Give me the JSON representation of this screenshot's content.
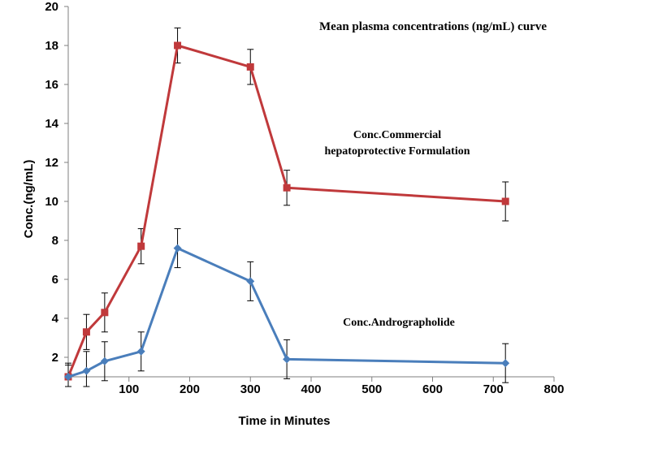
{
  "chart_data": {
    "type": "line",
    "title": "Mean plasma concentrations (ng/mL) curve",
    "xlabel": "Time in Minutes",
    "ylabel": "Conc.(ng/mL)",
    "xlim": [
      0,
      800
    ],
    "ylim": [
      1,
      20
    ],
    "x_ticks": [
      100,
      200,
      300,
      400,
      500,
      600,
      700,
      800
    ],
    "y_ticks": [
      2,
      4,
      6,
      8,
      10,
      12,
      14,
      16,
      18,
      20
    ],
    "grid": false,
    "annotations": [
      "Conc.Commercial",
      "hepatoprotective  Formulation",
      "Conc.Andrographolide"
    ],
    "series": [
      {
        "color": "#c0393b",
        "marker": "square",
        "x": [
          0,
          30,
          60,
          120,
          180,
          300,
          360,
          720
        ],
        "y": [
          1.0,
          3.3,
          4.3,
          7.7,
          18.0,
          16.9,
          10.7,
          10.0
        ],
        "error": [
          0.7,
          0.9,
          1.0,
          0.9,
          0.9,
          0.9,
          0.9,
          1.0
        ]
      },
      {
        "color": "#4a7ebb",
        "marker": "diamond",
        "x": [
          0,
          30,
          60,
          120,
          180,
          300,
          360,
          720
        ],
        "y": [
          1.0,
          1.3,
          1.8,
          2.3,
          7.6,
          5.9,
          1.9,
          1.7
        ],
        "error": [
          0.6,
          1.0,
          1.0,
          1.0,
          1.0,
          1.0,
          1.0,
          1.0
        ]
      }
    ]
  }
}
